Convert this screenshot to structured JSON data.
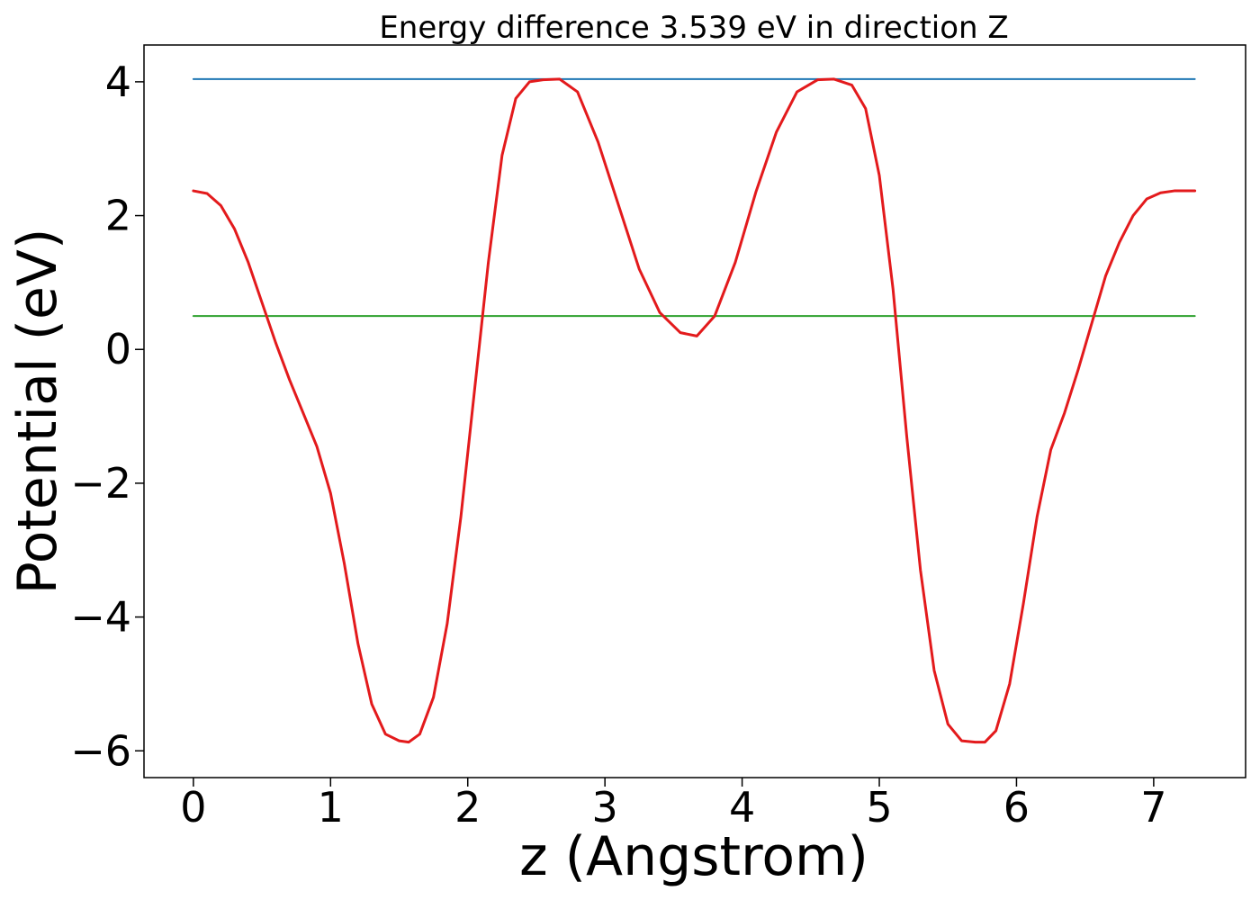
{
  "chart_data": {
    "type": "line",
    "title": "Energy difference 3.539 eV in direction Z",
    "xlabel": "z (Angstrom)",
    "ylabel": "Potential (eV)",
    "xlim": [
      -0.36,
      7.67
    ],
    "ylim": [
      -6.4,
      4.55
    ],
    "xticks": [
      0,
      1,
      2,
      3,
      4,
      5,
      6,
      7
    ],
    "yticks": [
      -6,
      -4,
      -2,
      0,
      2,
      4
    ],
    "xtick_labels": [
      "0",
      "1",
      "2",
      "3",
      "4",
      "5",
      "6",
      "7"
    ],
    "ytick_labels": [
      "−6",
      "−4",
      "−2",
      "0",
      "2",
      "4"
    ],
    "grid": false,
    "legend": "none",
    "series": [
      {
        "color": "#1f77b4",
        "x": [
          0,
          7.3
        ],
        "y": [
          4.04,
          4.04
        ]
      },
      {
        "color": "#2ca02c",
        "x": [
          0,
          7.3
        ],
        "y": [
          0.5,
          0.5
        ]
      },
      {
        "color": "#e31a1c",
        "x": [
          0,
          0.1,
          0.2,
          0.3,
          0.4,
          0.5,
          0.6,
          0.7,
          0.8,
          0.9,
          1.0,
          1.1,
          1.2,
          1.3,
          1.4,
          1.5,
          1.57,
          1.65,
          1.75,
          1.85,
          1.95,
          2.05,
          2.15,
          2.25,
          2.35,
          2.45,
          2.55,
          2.67,
          2.8,
          2.95,
          3.1,
          3.25,
          3.4,
          3.55,
          3.67,
          3.8,
          3.95,
          4.1,
          4.25,
          4.4,
          4.55,
          4.67,
          4.8,
          4.9,
          5.0,
          5.1,
          5.2,
          5.3,
          5.4,
          5.5,
          5.6,
          5.7,
          5.77,
          5.85,
          5.95,
          6.05,
          6.15,
          6.25,
          6.35,
          6.45,
          6.55,
          6.65,
          6.75,
          6.85,
          6.95,
          7.05,
          7.15,
          7.25,
          7.3
        ],
        "y": [
          2.37,
          2.33,
          2.15,
          1.8,
          1.3,
          0.7,
          0.1,
          -0.45,
          -0.95,
          -1.45,
          -2.15,
          -3.2,
          -4.4,
          -5.3,
          -5.75,
          -5.85,
          -5.87,
          -5.75,
          -5.2,
          -4.1,
          -2.5,
          -0.6,
          1.3,
          2.9,
          3.75,
          4.0,
          4.03,
          4.04,
          3.85,
          3.1,
          2.15,
          1.2,
          0.55,
          0.25,
          0.2,
          0.5,
          1.3,
          2.35,
          3.25,
          3.85,
          4.03,
          4.04,
          3.95,
          3.6,
          2.6,
          0.9,
          -1.3,
          -3.3,
          -4.8,
          -5.6,
          -5.85,
          -5.87,
          -5.87,
          -5.7,
          -5.0,
          -3.8,
          -2.5,
          -1.5,
          -0.95,
          -0.3,
          0.4,
          1.1,
          1.6,
          2.0,
          2.25,
          2.34,
          2.37,
          2.37,
          2.37
        ]
      }
    ]
  }
}
